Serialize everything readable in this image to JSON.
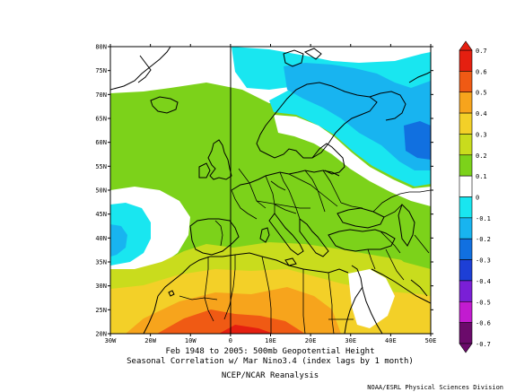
{
  "map": {
    "lon_ticks": [
      "30W",
      "20W",
      "10W",
      "0",
      "10E",
      "20E",
      "30E",
      "40E",
      "50E"
    ],
    "lat_ticks": [
      "80N",
      "75N",
      "70N",
      "65N",
      "60N",
      "55N",
      "50N",
      "45N",
      "40N",
      "35N",
      "30N",
      "25N",
      "20N"
    ],
    "extent": {
      "lon": [
        -30,
        50
      ],
      "lat": [
        20,
        80
      ]
    }
  },
  "colorbar": {
    "labels": [
      "0.7",
      "0.6",
      "0.5",
      "0.4",
      "0.3",
      "0.2",
      "0.1",
      "0",
      "-0.1",
      "-0.2",
      "-0.3",
      "-0.4",
      "-0.5",
      "-0.6",
      "-0.7"
    ],
    "colors": {
      "0.6": "#e51f10",
      "0.5": "#f05a14",
      "0.4": "#f7a41c",
      "0.3": "#f3d028",
      "0.2": "#c9dc1d",
      "0.1": "#7cd21a",
      "0": "#ffffff",
      "-0.1": "#19e6f0",
      "-0.2": "#18b4f0",
      "-0.3": "#1170e0",
      "-0.4": "#1d3fd6",
      "-0.5": "#7a1fd6",
      "-0.6": "#c21bd0",
      "-0.7": "#6b0a6b"
    }
  },
  "caption": {
    "line1": "Feb 1948 to 2005: 500mb Geopotential Height",
    "line2": "Seasonal Correlation w/ Mar Nino3.4 (index lags by 1 month)",
    "line3": "NCEP/NCAR Reanalysis"
  },
  "credit": "NOAA/ESRL Physical Sciences Division"
}
